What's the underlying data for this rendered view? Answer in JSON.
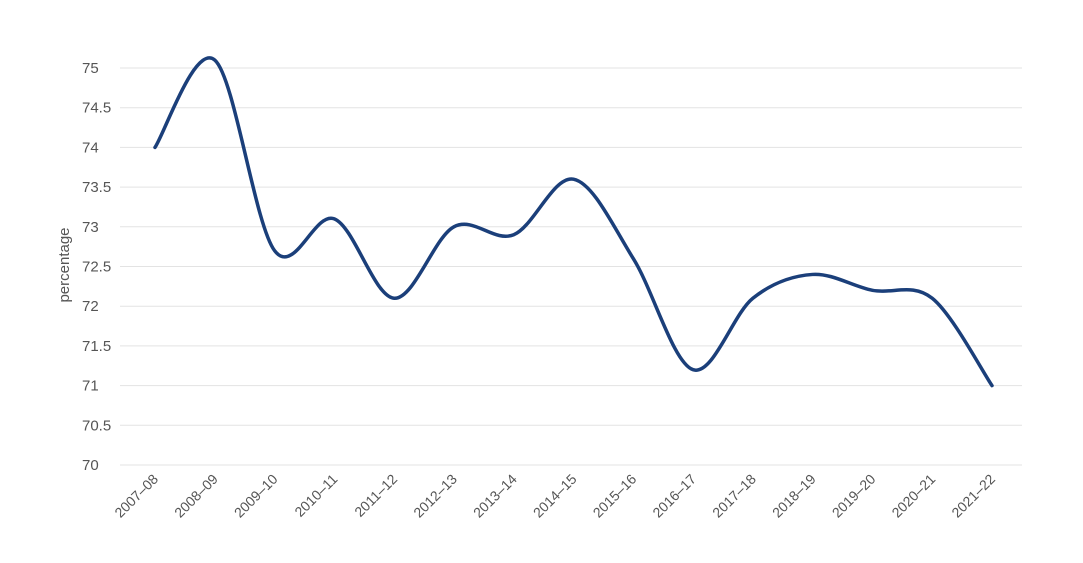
{
  "chart_data": {
    "type": "line",
    "title": "",
    "xlabel": "",
    "ylabel": "percentage",
    "categories": [
      "2007–08",
      "2008–09",
      "2009–10",
      "2010–11",
      "2011–12",
      "2012–13",
      "2013–14",
      "2014–15",
      "2015–16",
      "2016–17",
      "2017–18",
      "2018–19",
      "2019–20",
      "2020–21",
      "2021–22"
    ],
    "series": [
      {
        "values": [
          74.0,
          75.1,
          72.7,
          73.1,
          72.1,
          73.0,
          72.9,
          73.6,
          72.6,
          71.2,
          72.1,
          72.4,
          72.2,
          72.1,
          71.0
        ]
      }
    ],
    "ylim": [
      70,
      75
    ],
    "yticks": [
      "70",
      "70.5",
      "71",
      "71.5",
      "72",
      "72.5",
      "73",
      "73.5",
      "74",
      "74.5",
      "75"
    ],
    "grid": true,
    "colors": {
      "line": "#1b3f7a",
      "grid": "#e3e3e3",
      "text": "#555555"
    }
  }
}
